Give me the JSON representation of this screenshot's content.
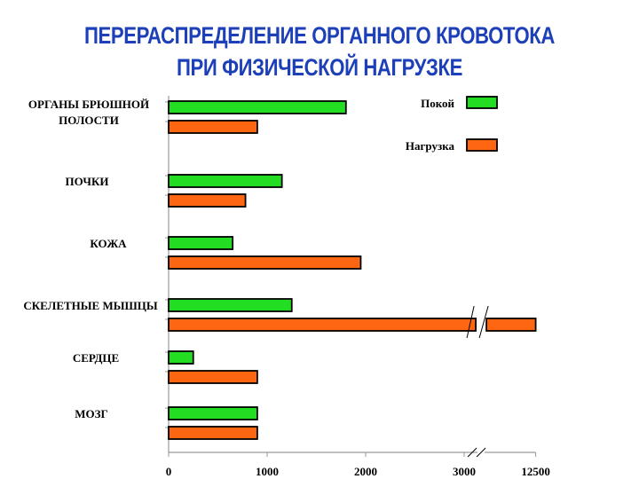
{
  "title_lines": [
    "ПЕРЕРАСПРЕДЕЛЕНИЕ ОРГАННОГО КРОВОТОКА",
    "ПРИ ФИЗИЧЕСКОЙ НАГРУЗКЕ"
  ],
  "chart_data": {
    "type": "bar",
    "orientation": "horizontal",
    "title": "ПЕРЕРАСПРЕДЕЛЕНИЕ ОРГАННОГО КРОВОТОКА ПРИ ФИЗИЧЕСКОЙ НАГРУЗКЕ",
    "categories": [
      [
        "ОРГАНЫ БРЮШНОЙ",
        "ПОЛОСТИ"
      ],
      [
        "ПОЧКИ"
      ],
      [
        "КОЖА"
      ],
      [
        "СКЕЛЕТНЫЕ МЫШЦЫ"
      ],
      [
        "СЕРДЦЕ"
      ],
      [
        "МОЗГ"
      ]
    ],
    "series": [
      {
        "name": "Покой",
        "color": "#22dd22",
        "values": [
          1800,
          1150,
          650,
          1250,
          250,
          900
        ]
      },
      {
        "name": "Нагрузка",
        "color": "#ff6611",
        "values": [
          900,
          780,
          1950,
          12500,
          900,
          900
        ]
      }
    ],
    "x_ticks": [
      "0",
      "1000",
      "2000",
      "3000",
      "12500"
    ],
    "x_tick_values": [
      0,
      1000,
      2000,
      3000,
      12500
    ],
    "axis_break": {
      "from": 3100,
      "to": 12000
    },
    "xlim": [
      0,
      12500
    ],
    "legend_position": "top-right",
    "grid": false
  }
}
